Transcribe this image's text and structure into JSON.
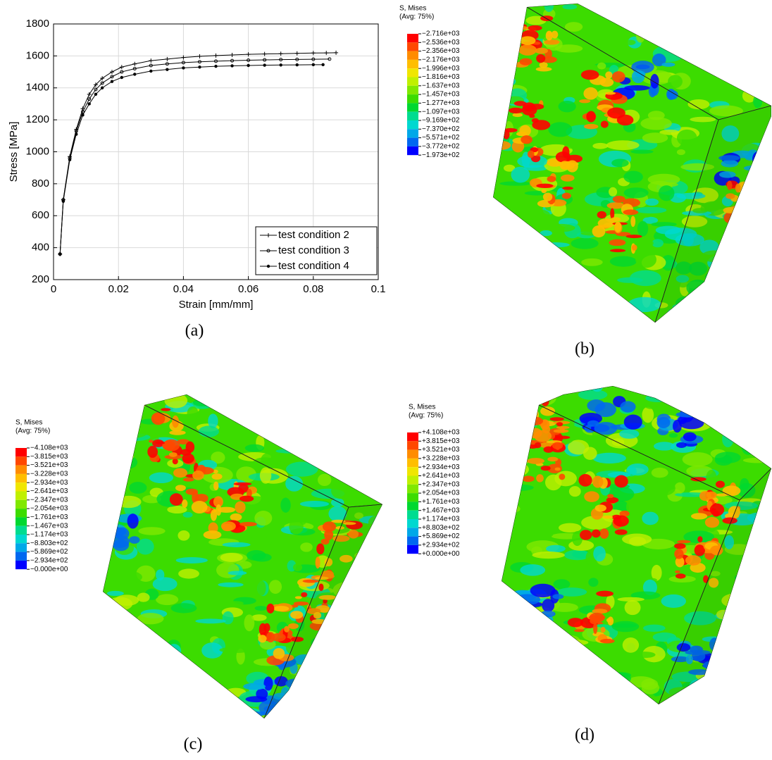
{
  "chart_data": {
    "type": "line",
    "x_label": "Strain [mm/mm]",
    "y_label": "Stress [MPa]",
    "caption": "(a)",
    "xlim": [
      0,
      0.1
    ],
    "ylim": [
      200,
      1800
    ],
    "xticks": [
      0,
      0.02,
      0.04,
      0.06,
      0.08,
      0.1
    ],
    "yticks": [
      200,
      400,
      600,
      800,
      1000,
      1200,
      1400,
      1600,
      1800
    ],
    "grid": true,
    "legend": "lower right",
    "series": [
      {
        "name": "test condition 2",
        "color": "#000000",
        "marker": "+",
        "x": [
          0.002,
          0.003,
          0.005,
          0.007,
          0.009,
          0.011,
          0.013,
          0.015,
          0.018,
          0.021,
          0.025,
          0.03,
          0.035,
          0.04,
          0.045,
          0.05,
          0.055,
          0.06,
          0.065,
          0.07,
          0.075,
          0.08,
          0.084,
          0.087
        ],
        "values": [
          360,
          700,
          970,
          1140,
          1270,
          1360,
          1420,
          1460,
          1500,
          1530,
          1550,
          1570,
          1580,
          1590,
          1597,
          1602,
          1606,
          1610,
          1612,
          1614,
          1616,
          1618,
          1619,
          1620
        ]
      },
      {
        "name": "test condition 3",
        "color": "#000000",
        "marker": "o",
        "x": [
          0.002,
          0.003,
          0.005,
          0.007,
          0.009,
          0.011,
          0.013,
          0.015,
          0.018,
          0.021,
          0.025,
          0.03,
          0.035,
          0.04,
          0.045,
          0.05,
          0.055,
          0.06,
          0.065,
          0.07,
          0.075,
          0.08,
          0.085
        ],
        "values": [
          360,
          700,
          960,
          1130,
          1250,
          1330,
          1390,
          1430,
          1470,
          1500,
          1520,
          1540,
          1550,
          1558,
          1563,
          1567,
          1570,
          1573,
          1575,
          1577,
          1578,
          1579,
          1580
        ]
      },
      {
        "name": "test condition 4",
        "color": "#000000",
        "marker": "*",
        "x": [
          0.002,
          0.003,
          0.005,
          0.007,
          0.009,
          0.011,
          0.013,
          0.015,
          0.018,
          0.021,
          0.025,
          0.03,
          0.035,
          0.04,
          0.045,
          0.05,
          0.055,
          0.06,
          0.065,
          0.07,
          0.075,
          0.08,
          0.083
        ],
        "values": [
          360,
          690,
          950,
          1110,
          1230,
          1300,
          1360,
          1400,
          1440,
          1465,
          1485,
          1505,
          1515,
          1525,
          1530,
          1535,
          1538,
          1540,
          1542,
          1543,
          1544,
          1545,
          1545
        ]
      }
    ]
  },
  "colormap": [
    "#ff0000",
    "#ff4800",
    "#ff8c00",
    "#ffbe00",
    "#f0e600",
    "#c0f000",
    "#80e800",
    "#3cdc00",
    "#00d830",
    "#00dc90",
    "#00d8d0",
    "#00a8e8",
    "#0068f0",
    "#0000ff"
  ],
  "panels": [
    {
      "caption": "(b)",
      "legend_title": "S, Mises",
      "legend_subtitle": "(Avg: 75%)",
      "legend_labels": [
        "−2.716e+03",
        "−2.536e+03",
        "−2.356e+03",
        "−2.176e+03",
        "−1.996e+03",
        "−1.816e+03",
        "−1.637e+03",
        "−1.457e+03",
        "−1.277e+03",
        "−1.097e+03",
        "−9.169e+02",
        "−7.370e+02",
        "−5.571e+02",
        "−3.772e+02",
        "−1.973e+02"
      ]
    },
    {
      "caption": "(c)",
      "legend_title": "S, Mises",
      "legend_subtitle": "(Avg: 75%)",
      "legend_labels": [
        "−4.108e+03",
        "−3.815e+03",
        "−3.521e+03",
        "−3.228e+03",
        "−2.934e+03",
        "−2.641e+03",
        "−2.347e+03",
        "−2.054e+03",
        "−1.761e+03",
        "−1.467e+03",
        "−1.174e+03",
        "−8.803e+02",
        "−5.869e+02",
        "−2.934e+02",
        "−0.000e+00"
      ]
    },
    {
      "caption": "(d)",
      "legend_title": "S, Mises",
      "legend_subtitle": "(Avg: 75%)",
      "legend_labels": [
        "+4.108e+03",
        "+3.815e+03",
        "+3.521e+03",
        "+3.228e+03",
        "+2.934e+03",
        "+2.641e+03",
        "+2.347e+03",
        "+2.054e+03",
        "+1.761e+03",
        "+1.467e+03",
        "+1.174e+03",
        "+8.803e+02",
        "+5.869e+02",
        "+2.934e+02",
        "+0.000e+00"
      ]
    }
  ]
}
